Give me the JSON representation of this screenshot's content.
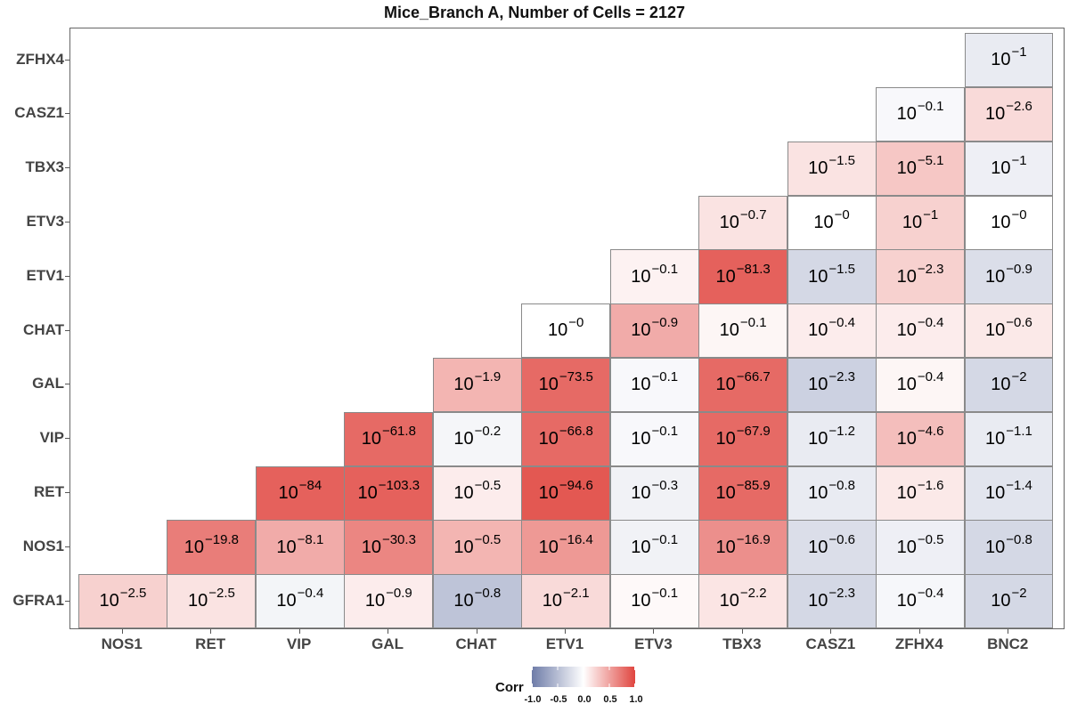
{
  "chart_data": {
    "type": "heatmap",
    "title": "Mice_Branch A, Number of Cells = 2127",
    "x_labels": [
      "NOS1",
      "RET",
      "VIP",
      "GAL",
      "CHAT",
      "ETV1",
      "ETV3",
      "TBX3",
      "CASZ1",
      "ZFHX4",
      "BNC2"
    ],
    "y_labels": [
      "GFRA1",
      "NOS1",
      "RET",
      "VIP",
      "GAL",
      "CHAT",
      "ETV1",
      "ETV3",
      "TBX3",
      "CASZ1",
      "ZFHX4"
    ],
    "cells": [
      {
        "x": "NOS1",
        "y": "GFRA1",
        "exponent": "−2.5",
        "corr": 0.25
      },
      {
        "x": "RET",
        "y": "GFRA1",
        "exponent": "−2.5",
        "corr": 0.15
      },
      {
        "x": "VIP",
        "y": "GFRA1",
        "exponent": "−0.4",
        "corr": -0.08
      },
      {
        "x": "GAL",
        "y": "GFRA1",
        "exponent": "−0.9",
        "corr": 0.1
      },
      {
        "x": "CHAT",
        "y": "GFRA1",
        "exponent": "−0.8",
        "corr": -0.45
      },
      {
        "x": "ETV1",
        "y": "GFRA1",
        "exponent": "−2.1",
        "corr": 0.2
      },
      {
        "x": "ETV3",
        "y": "GFRA1",
        "exponent": "−0.1",
        "corr": 0.03
      },
      {
        "x": "TBX3",
        "y": "GFRA1",
        "exponent": "−2.2",
        "corr": 0.14
      },
      {
        "x": "CASZ1",
        "y": "GFRA1",
        "exponent": "−2.3",
        "corr": -0.3
      },
      {
        "x": "ZFHX4",
        "y": "GFRA1",
        "exponent": "−0.4",
        "corr": -0.06
      },
      {
        "x": "BNC2",
        "y": "GFRA1",
        "exponent": "−2",
        "corr": -0.3
      },
      {
        "x": "RET",
        "y": "NOS1",
        "exponent": "−19.8",
        "corr": 0.7
      },
      {
        "x": "VIP",
        "y": "NOS1",
        "exponent": "−8.1",
        "corr": 0.45
      },
      {
        "x": "GAL",
        "y": "NOS1",
        "exponent": "−30.3",
        "corr": 0.65
      },
      {
        "x": "CHAT",
        "y": "NOS1",
        "exponent": "−0.5",
        "corr": 0.4
      },
      {
        "x": "ETV1",
        "y": "NOS1",
        "exponent": "−16.4",
        "corr": 0.55
      },
      {
        "x": "ETV3",
        "y": "NOS1",
        "exponent": "−0.1",
        "corr": -0.1
      },
      {
        "x": "TBX3",
        "y": "NOS1",
        "exponent": "−16.9",
        "corr": 0.6
      },
      {
        "x": "CASZ1",
        "y": "NOS1",
        "exponent": "−0.6",
        "corr": -0.25
      },
      {
        "x": "ZFHX4",
        "y": "NOS1",
        "exponent": "−0.5",
        "corr": -0.12
      },
      {
        "x": "BNC2",
        "y": "NOS1",
        "exponent": "−0.8",
        "corr": -0.3
      },
      {
        "x": "VIP",
        "y": "RET",
        "exponent": "−84",
        "corr": 0.85
      },
      {
        "x": "GAL",
        "y": "RET",
        "exponent": "−103.3",
        "corr": 0.85
      },
      {
        "x": "CHAT",
        "y": "RET",
        "exponent": "−0.5",
        "corr": 0.1
      },
      {
        "x": "ETV1",
        "y": "RET",
        "exponent": "−94.6",
        "corr": 0.9
      },
      {
        "x": "ETV3",
        "y": "RET",
        "exponent": "−0.3",
        "corr": -0.1
      },
      {
        "x": "TBX3",
        "y": "RET",
        "exponent": "−85.9",
        "corr": 0.8
      },
      {
        "x": "CASZ1",
        "y": "RET",
        "exponent": "−0.8",
        "corr": -0.15
      },
      {
        "x": "ZFHX4",
        "y": "RET",
        "exponent": "−1.6",
        "corr": 0.12
      },
      {
        "x": "BNC2",
        "y": "RET",
        "exponent": "−1.4",
        "corr": -0.2
      },
      {
        "x": "GAL",
        "y": "VIP",
        "exponent": "−61.8",
        "corr": 0.8
      },
      {
        "x": "CHAT",
        "y": "VIP",
        "exponent": "−0.2",
        "corr": -0.07
      },
      {
        "x": "ETV1",
        "y": "VIP",
        "exponent": "−66.8",
        "corr": 0.8
      },
      {
        "x": "ETV3",
        "y": "VIP",
        "exponent": "−0.1",
        "corr": -0.05
      },
      {
        "x": "TBX3",
        "y": "VIP",
        "exponent": "−67.9",
        "corr": 0.8
      },
      {
        "x": "CASZ1",
        "y": "VIP",
        "exponent": "−1.2",
        "corr": -0.15
      },
      {
        "x": "ZFHX4",
        "y": "VIP",
        "exponent": "−4.6",
        "corr": 0.35
      },
      {
        "x": "BNC2",
        "y": "VIP",
        "exponent": "−1.1",
        "corr": -0.15
      },
      {
        "x": "CHAT",
        "y": "GAL",
        "exponent": "−1.9",
        "corr": 0.4
      },
      {
        "x": "ETV1",
        "y": "GAL",
        "exponent": "−73.5",
        "corr": 0.8
      },
      {
        "x": "ETV3",
        "y": "GAL",
        "exponent": "−0.1",
        "corr": -0.05
      },
      {
        "x": "TBX3",
        "y": "GAL",
        "exponent": "−66.7",
        "corr": 0.8
      },
      {
        "x": "CASZ1",
        "y": "GAL",
        "exponent": "−2.3",
        "corr": -0.35
      },
      {
        "x": "ZFHX4",
        "y": "GAL",
        "exponent": "−0.4",
        "corr": 0.05
      },
      {
        "x": "BNC2",
        "y": "GAL",
        "exponent": "−2",
        "corr": -0.3
      },
      {
        "x": "ETV1",
        "y": "CHAT",
        "exponent": "−0",
        "corr": 0.0
      },
      {
        "x": "ETV3",
        "y": "CHAT",
        "exponent": "−0.9",
        "corr": 0.45
      },
      {
        "x": "TBX3",
        "y": "CHAT",
        "exponent": "−0.1",
        "corr": 0.05
      },
      {
        "x": "CASZ1",
        "y": "CHAT",
        "exponent": "−0.4",
        "corr": 0.1
      },
      {
        "x": "ZFHX4",
        "y": "CHAT",
        "exponent": "−0.4",
        "corr": 0.1
      },
      {
        "x": "BNC2",
        "y": "CHAT",
        "exponent": "−0.6",
        "corr": 0.12
      },
      {
        "x": "ETV3",
        "y": "ETV1",
        "exponent": "−0.1",
        "corr": 0.07
      },
      {
        "x": "TBX3",
        "y": "ETV1",
        "exponent": "−81.3",
        "corr": 0.85
      },
      {
        "x": "CASZ1",
        "y": "ETV1",
        "exponent": "−1.5",
        "corr": -0.3
      },
      {
        "x": "ZFHX4",
        "y": "ETV1",
        "exponent": "−2.3",
        "corr": 0.25
      },
      {
        "x": "BNC2",
        "y": "ETV1",
        "exponent": "−0.9",
        "corr": -0.25
      },
      {
        "x": "TBX3",
        "y": "ETV3",
        "exponent": "−0.7",
        "corr": 0.15
      },
      {
        "x": "CASZ1",
        "y": "ETV3",
        "exponent": "−0",
        "corr": 0.0
      },
      {
        "x": "ZFHX4",
        "y": "ETV3",
        "exponent": "−1",
        "corr": 0.25
      },
      {
        "x": "BNC2",
        "y": "ETV3",
        "exponent": "−0",
        "corr": 0.0
      },
      {
        "x": "CASZ1",
        "y": "TBX3",
        "exponent": "−1.5",
        "corr": 0.15
      },
      {
        "x": "ZFHX4",
        "y": "TBX3",
        "exponent": "−5.1",
        "corr": 0.3
      },
      {
        "x": "BNC2",
        "y": "TBX3",
        "exponent": "−1",
        "corr": -0.12
      },
      {
        "x": "ZFHX4",
        "y": "CASZ1",
        "exponent": "−0.1",
        "corr": -0.05
      },
      {
        "x": "BNC2",
        "y": "CASZ1",
        "exponent": "−2.6",
        "corr": 0.2
      },
      {
        "x": "BNC2",
        "y": "ZFHX4",
        "exponent": "−1",
        "corr": -0.15
      }
    ],
    "value_base": "10",
    "legend": {
      "title": "Corr",
      "ticks": [
        "-1.0",
        "-0.5",
        "0.0",
        "0.5",
        "1.0"
      ],
      "placement": "bottom"
    },
    "colors": {
      "negative": "#6e7ca8",
      "neutral": "#ffffff",
      "positive": "#e0453f"
    }
  }
}
